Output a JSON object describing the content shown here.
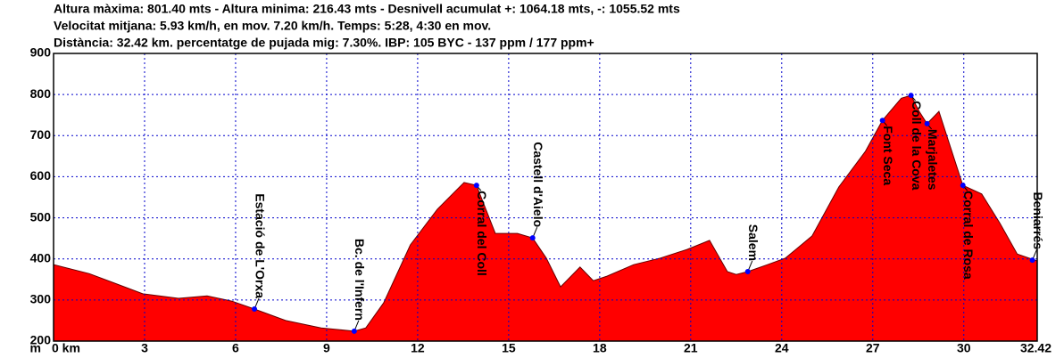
{
  "chart_data": {
    "type": "area",
    "header": [
      "Altura màxima: 801.40 mts - Altura minima: 216.43 mts - Desnivell acumulat +: 1064.18 mts, -: 1055.52 mts",
      "Velocitat mitjana: 5.93 km/h, en mov. 7.20 km/h. Temps: 5:28, 4:30 en mov.",
      "Distància: 32.42 km. percentatge de pujada mig: 7.30%. IBP: 105 BYC - 137 ppm / 177 ppm+"
    ],
    "y_unit": "m",
    "color": "#ff0000",
    "grid": true,
    "xlim": [
      0,
      32.42
    ],
    "ylim": [
      200,
      900
    ],
    "xticks": [
      {
        "value": 0,
        "label": "0 km"
      },
      3,
      6,
      9,
      12,
      15,
      18,
      21,
      24,
      27,
      30,
      32.42
    ],
    "yticks": [
      200,
      300,
      400,
      500,
      600,
      700,
      800,
      900
    ],
    "x": [
      0,
      1.18,
      2.94,
      4.12,
      5.06,
      5.88,
      6.62,
      7.65,
      8.82,
      9.91,
      10.29,
      10.88,
      11.76,
      12.65,
      13.53,
      13.94,
      14.56,
      15.29,
      15.79,
      16.24,
      16.71,
      17.35,
      17.79,
      18.24,
      19.12,
      20.0,
      20.88,
      21.62,
      22.21,
      22.5,
      22.88,
      23.53,
      24.12,
      25.0,
      25.88,
      26.76,
      27.32,
      27.94,
      28.26,
      28.53,
      28.79,
      29.18,
      29.56,
      29.97,
      30.59,
      31.18,
      31.76,
      32.42
    ],
    "values": [
      386,
      364,
      315,
      304,
      310,
      297,
      278,
      250,
      232,
      224,
      232,
      293,
      434,
      521,
      586,
      579,
      462,
      462,
      451,
      402,
      332,
      380,
      347,
      358,
      386,
      402,
      423,
      445,
      369,
      362,
      369,
      386,
      402,
      456,
      575,
      662,
      737,
      791,
      798,
      759,
      729,
      759,
      672,
      579,
      558,
      488,
      412,
      395
    ],
    "waypoints": [
      {
        "name": "Estació de L'Orxa",
        "x": 6.62,
        "y": 278
      },
      {
        "name": "Bc. de l'Infern",
        "x": 9.91,
        "y": 224
      },
      {
        "name": "Corral del Coll",
        "x": 13.94,
        "y": 579
      },
      {
        "name": "Castell d'Aielo",
        "x": 15.79,
        "y": 451
      },
      {
        "name": "Salem",
        "x": 22.88,
        "y": 369
      },
      {
        "name": "Font Seca",
        "x": 27.32,
        "y": 737
      },
      {
        "name": "Coll de la Cova",
        "x": 28.26,
        "y": 798
      },
      {
        "name": "Marjaletes",
        "x": 28.79,
        "y": 729
      },
      {
        "name": "Corral de Rosa",
        "x": 29.97,
        "y": 579
      },
      {
        "name": "Beniarrés",
        "x": 32.26,
        "y": 397
      }
    ]
  }
}
